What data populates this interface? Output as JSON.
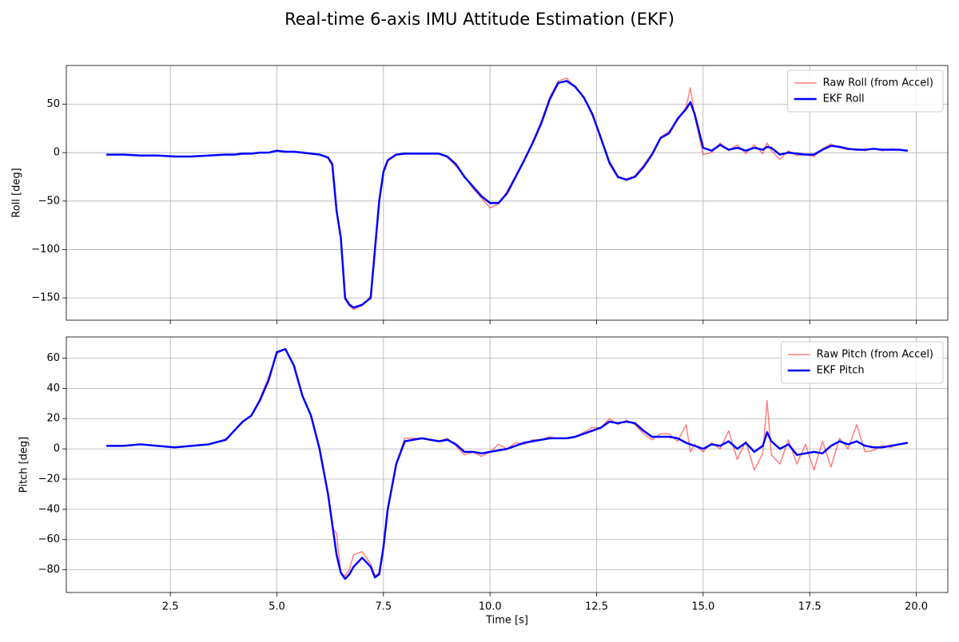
{
  "title": "Real-time 6-axis IMU Attitude Estimation (EKF)",
  "chart_data": [
    {
      "type": "line",
      "ylabel": "Roll [deg]",
      "legend": "upper right",
      "grid": true,
      "xlim": [
        0.06,
        20.74
      ],
      "ylim": [
        -173,
        90
      ],
      "xticks": [
        2.5,
        5,
        7.5,
        10,
        12.5,
        15,
        17.5,
        20
      ],
      "yticks": [
        {
          "value": -150,
          "label": "−150"
        },
        {
          "value": -100,
          "label": "−100"
        },
        {
          "value": -50,
          "label": "−50"
        },
        0,
        50
      ],
      "x": [
        1.0,
        1.4,
        1.8,
        2.2,
        2.6,
        3.0,
        3.4,
        3.8,
        4.0,
        4.2,
        4.4,
        4.6,
        4.8,
        5.0,
        5.2,
        5.4,
        5.6,
        5.8,
        6.0,
        6.2,
        6.3,
        6.4,
        6.5,
        6.6,
        6.7,
        6.8,
        7.0,
        7.2,
        7.3,
        7.4,
        7.5,
        7.6,
        7.8,
        8.0,
        8.4,
        8.8,
        9.0,
        9.2,
        9.4,
        9.6,
        9.8,
        10.0,
        10.2,
        10.4,
        10.6,
        10.8,
        11.0,
        11.2,
        11.4,
        11.6,
        11.8,
        12.0,
        12.2,
        12.4,
        12.6,
        12.8,
        13.0,
        13.2,
        13.4,
        13.6,
        13.8,
        14.0,
        14.2,
        14.4,
        14.6,
        14.7,
        14.8,
        15.0,
        15.2,
        15.4,
        15.6,
        15.8,
        16.0,
        16.2,
        16.4,
        16.5,
        16.6,
        16.8,
        17.0,
        17.2,
        17.4,
        17.6,
        17.8,
        18.0,
        18.2,
        18.4,
        18.6,
        18.8,
        19.0,
        19.2,
        19.4,
        19.6,
        19.8
      ],
      "series": [
        {
          "name": "Raw Roll (from Accel)",
          "color": "#ff0000",
          "opacity": 0.5,
          "width": 1.5,
          "values": [
            -2,
            -2,
            -3,
            -3,
            -4,
            -4,
            -3,
            -2,
            -2,
            -1,
            -1,
            0,
            0,
            2,
            1,
            1,
            0,
            -1,
            -2,
            -6,
            -14,
            -62,
            -86,
            -152,
            -158,
            -162,
            -158,
            -148,
            -98,
            -48,
            -18,
            -7,
            -2,
            -1,
            -1,
            -1,
            -5,
            -14,
            -24,
            -37,
            -47,
            -57,
            -53,
            -40,
            -24,
            -9,
            11,
            32,
            57,
            74,
            77,
            67,
            58,
            38,
            17,
            -12,
            -26,
            -27,
            -24,
            -13,
            -1,
            16,
            22,
            33,
            47,
            67,
            38,
            -2,
            0,
            10,
            2,
            8,
            -1,
            8,
            -1,
            10,
            2,
            -7,
            2,
            -3,
            -2,
            -4,
            4,
            9,
            5,
            3,
            4,
            2,
            4,
            2,
            4,
            3,
            2
          ]
        },
        {
          "name": "EKF Roll",
          "color": "#0000ff",
          "opacity": 1,
          "width": 2.5,
          "values": [
            -2,
            -2,
            -3,
            -3,
            -4,
            -4,
            -3,
            -2,
            -2,
            -1,
            -1,
            0,
            0,
            2,
            1,
            1,
            0,
            -1,
            -2,
            -5,
            -12,
            -60,
            -88,
            -150,
            -157,
            -160,
            -157,
            -150,
            -100,
            -50,
            -20,
            -8,
            -2,
            -1,
            -1,
            -1,
            -4,
            -12,
            -25,
            -35,
            -45,
            -52,
            -52,
            -42,
            -25,
            -8,
            10,
            30,
            55,
            72,
            74,
            68,
            57,
            40,
            15,
            -10,
            -25,
            -28,
            -25,
            -15,
            -2,
            15,
            20,
            35,
            45,
            52,
            40,
            5,
            2,
            8,
            3,
            5,
            2,
            5,
            3,
            6,
            5,
            -2,
            0,
            -1,
            -2,
            -2,
            3,
            7,
            6,
            4,
            3,
            3,
            4,
            3,
            3,
            3,
            2
          ]
        }
      ]
    },
    {
      "type": "line",
      "xlabel": "Time [s]",
      "ylabel": "Pitch [deg]",
      "legend": "upper right",
      "grid": true,
      "xlim": [
        0.06,
        20.74
      ],
      "ylim": [
        -95,
        74
      ],
      "xticks": [
        2.5,
        {
          "value": 5,
          "label": "5.0"
        },
        7.5,
        {
          "value": 10,
          "label": "10.0"
        },
        12.5,
        {
          "value": 15,
          "label": "15.0"
        },
        17.5,
        {
          "value": 20,
          "label": "20.0"
        }
      ],
      "yticks": [
        {
          "value": -80,
          "label": "−80"
        },
        {
          "value": -60,
          "label": "−60"
        },
        {
          "value": -40,
          "label": "−40"
        },
        {
          "value": -20,
          "label": "−20"
        },
        0,
        20,
        40,
        60
      ],
      "x": [
        1.0,
        1.4,
        1.8,
        2.2,
        2.6,
        3.0,
        3.4,
        3.8,
        4.0,
        4.2,
        4.4,
        4.6,
        4.8,
        5.0,
        5.2,
        5.4,
        5.6,
        5.8,
        6.0,
        6.2,
        6.3,
        6.4,
        6.5,
        6.6,
        6.7,
        6.8,
        7.0,
        7.2,
        7.3,
        7.4,
        7.5,
        7.6,
        7.8,
        8.0,
        8.4,
        8.8,
        9.0,
        9.2,
        9.4,
        9.6,
        9.8,
        10.0,
        10.2,
        10.4,
        10.6,
        10.8,
        11.0,
        11.2,
        11.4,
        11.6,
        11.8,
        12.0,
        12.2,
        12.4,
        12.6,
        12.8,
        13.0,
        13.2,
        13.4,
        13.6,
        13.8,
        14.0,
        14.2,
        14.4,
        14.6,
        14.7,
        14.8,
        15.0,
        15.2,
        15.4,
        15.6,
        15.8,
        16.0,
        16.2,
        16.4,
        16.5,
        16.6,
        16.8,
        17.0,
        17.2,
        17.4,
        17.6,
        17.8,
        18.0,
        18.2,
        18.4,
        18.6,
        18.8,
        19.0,
        19.2,
        19.4,
        19.6,
        19.8
      ],
      "series": [
        {
          "name": "Raw Pitch (from Accel)",
          "color": "#ff0000",
          "opacity": 0.5,
          "width": 1.5,
          "values": [
            2,
            2,
            3,
            2,
            1,
            2,
            3,
            6,
            12,
            18,
            22,
            33,
            47,
            63,
            66,
            55,
            35,
            22,
            0,
            -30,
            -52,
            -56,
            -82,
            -84,
            -80,
            -70,
            -68,
            -76,
            -84,
            -82,
            -64,
            -40,
            -10,
            7,
            7,
            5,
            7,
            2,
            -4,
            -2,
            -5,
            -2,
            3,
            0,
            4,
            3,
            6,
            6,
            8,
            7,
            7,
            8,
            11,
            14,
            14,
            20,
            16,
            19,
            16,
            10,
            6,
            10,
            10,
            5,
            16,
            -2,
            3,
            -2,
            4,
            0,
            12,
            -7,
            5,
            -14,
            -3,
            32,
            -4,
            -10,
            6,
            -10,
            3,
            -14,
            5,
            -12,
            7,
            0,
            16,
            -2,
            -1,
            2,
            1,
            3,
            4
          ]
        },
        {
          "name": "EKF Pitch",
          "color": "#0000ff",
          "opacity": 1,
          "width": 2.5,
          "values": [
            2,
            2,
            3,
            2,
            1,
            2,
            3,
            6,
            12,
            18,
            22,
            32,
            45,
            64,
            66,
            55,
            35,
            22,
            0,
            -30,
            -50,
            -70,
            -82,
            -86,
            -83,
            -78,
            -72,
            -78,
            -85,
            -83,
            -65,
            -40,
            -10,
            5,
            7,
            5,
            6,
            3,
            -2,
            -2,
            -3,
            -2,
            -1,
            0,
            2,
            4,
            5,
            6,
            7,
            7,
            7,
            8,
            10,
            12,
            14,
            18,
            17,
            18,
            17,
            12,
            8,
            8,
            8,
            7,
            4,
            3,
            2,
            0,
            3,
            2,
            5,
            0,
            4,
            -2,
            2,
            11,
            5,
            0,
            3,
            -4,
            -3,
            -2,
            -3,
            2,
            5,
            3,
            5,
            2,
            1,
            1,
            2,
            3,
            4
          ]
        }
      ]
    }
  ]
}
